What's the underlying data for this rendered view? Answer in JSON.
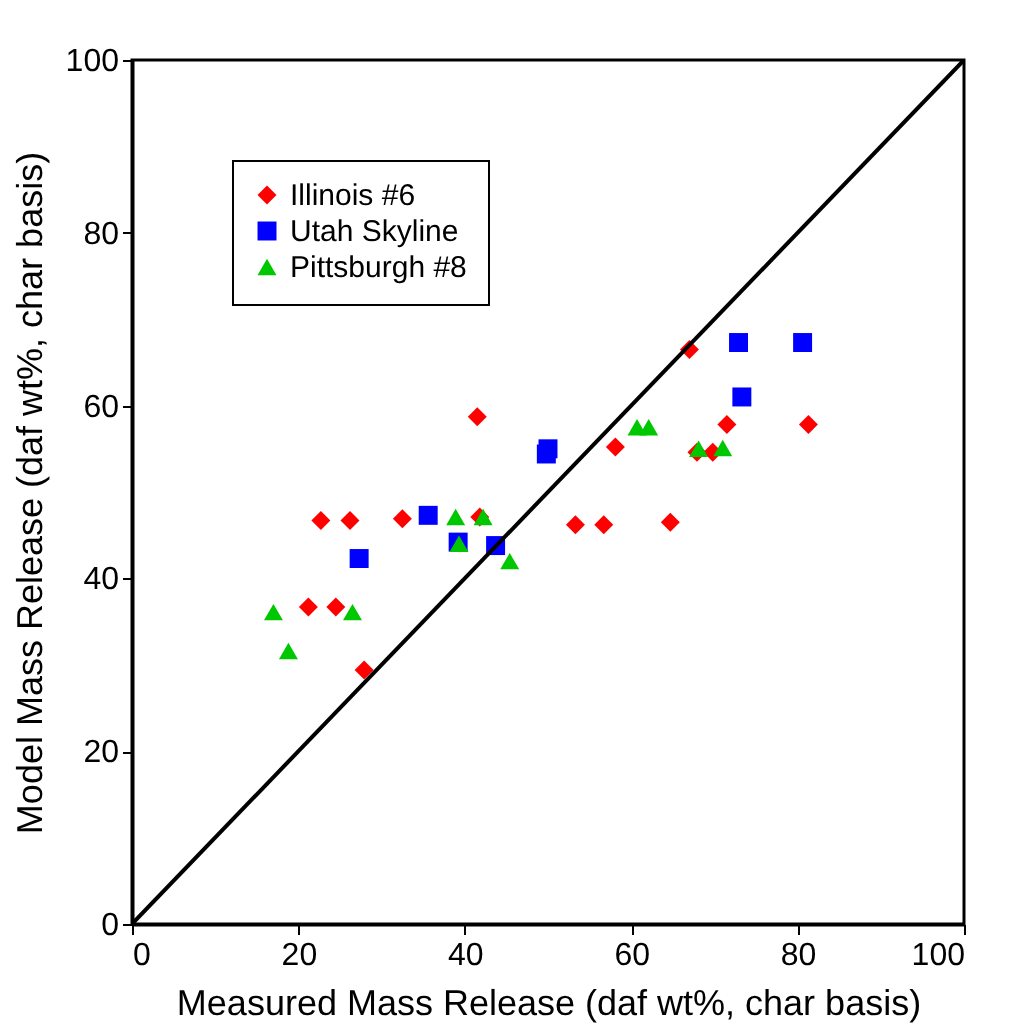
{
  "chart_data": {
    "type": "scatter",
    "xlabel": "Measured Mass Release (daf wt%, char basis)",
    "ylabel": "Model Mass Release (daf wt%, char basis)",
    "xlim": [
      0,
      100
    ],
    "ylim": [
      0,
      100
    ],
    "xticks": [
      0,
      20,
      40,
      60,
      80,
      100
    ],
    "yticks": [
      0,
      20,
      40,
      60,
      80,
      100
    ],
    "grid": false,
    "legend": "top left",
    "series": [
      {
        "name": "Illinois #6",
        "color": "#ff0000",
        "marker": "diamond",
        "x": [
          22.7,
          26.2,
          32.5,
          41.8,
          21.2,
          24.5,
          27.9,
          41.5,
          53.3,
          56.7,
          64.7,
          58.1,
          67.9,
          69.8,
          71.5,
          81.3,
          67.0
        ],
        "values": [
          46.7,
          46.7,
          46.9,
          47.1,
          36.7,
          36.7,
          29.4,
          58.7,
          46.2,
          46.2,
          46.5,
          55.2,
          54.6,
          54.6,
          57.8,
          57.8,
          66.5
        ]
      },
      {
        "name": "Utah Skyline",
        "color": "#0000ff",
        "marker": "square",
        "x": [
          35.6,
          27.3,
          39.2,
          43.7,
          72.9,
          80.6,
          73.3,
          50.0,
          49.8
        ],
        "values": [
          47.3,
          42.3,
          44.2,
          43.8,
          67.3,
          67.3,
          61.0,
          55.0,
          54.4
        ]
      },
      {
        "name": "Pittsburgh #8",
        "color": "#00c800",
        "marker": "triangle",
        "x": [
          38.9,
          42.2,
          39.3,
          45.4,
          17.0,
          26.5,
          18.8,
          60.7,
          62.1,
          68.1,
          71.0
        ],
        "values": [
          47.1,
          47.1,
          44.0,
          42.0,
          36.1,
          36.1,
          31.6,
          57.5,
          57.5,
          55.0,
          55.1
        ]
      },
      {
        "type": "line",
        "color": "#000000",
        "marker": "none",
        "line_style": "solid",
        "x": [
          0,
          100
        ],
        "values": [
          0,
          100
        ]
      }
    ]
  }
}
